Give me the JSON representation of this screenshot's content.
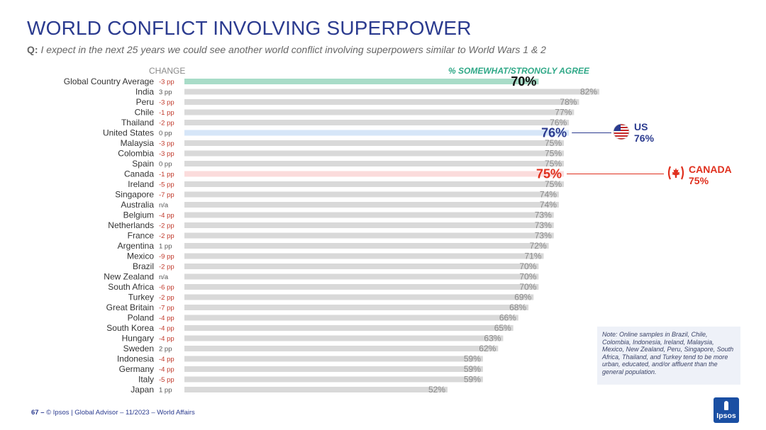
{
  "title": "WORLD CONFLICT INVOLVING SUPERPOWER",
  "question": {
    "label": "Q:",
    "text": "I expect in the next 25 years we could see another world conflict involving superpowers similar to World Wars 1 & 2"
  },
  "change_header": "CHANGE",
  "agree_header": "% SOMEWHAT/STRONGLY AGREE",
  "colors": {
    "title": "#2b3b8f",
    "bar_default": "#d9d9d9",
    "bar_global": "#a8dcc8",
    "bar_us": "#d6e6f8",
    "bar_canada": "#fbdcdc",
    "negative_change": "#c0392b",
    "positive_change": "#555555",
    "us_accent": "#2b3b8f",
    "canada_accent": "#e0301e",
    "agree_header": "#2fa887"
  },
  "chart_data": {
    "type": "bar",
    "orientation": "horizontal",
    "categories": [
      "Global Country Average",
      "India",
      "Peru",
      "Chile",
      "Thailand",
      "United States",
      "Malaysia",
      "Colombia",
      "Spain",
      "Canada",
      "Ireland",
      "Singapore",
      "Australia",
      "Belgium",
      "Netherlands",
      "France",
      "Argentina",
      "Mexico",
      "Brazil",
      "New Zealand",
      "South Africa",
      "Turkey",
      "Great Britain",
      "Poland",
      "South Korea",
      "Hungary",
      "Sweden",
      "Indonesia",
      "Germany",
      "Italy",
      "Japan"
    ],
    "values": [
      70,
      82,
      78,
      77,
      76,
      76,
      75,
      75,
      75,
      75,
      75,
      74,
      74,
      73,
      73,
      73,
      72,
      71,
      70,
      70,
      70,
      69,
      68,
      66,
      65,
      63,
      62,
      59,
      59,
      59,
      52
    ],
    "value_labels": [
      "70%",
      "82%",
      "78%",
      "77%",
      "76%",
      "76%",
      "75%",
      "75%",
      "75%",
      "75%",
      "75%",
      "74%",
      "74%",
      "73%",
      "73%",
      "73%",
      "72%",
      "71%",
      "70%",
      "70%",
      "70%",
      "69%",
      "68%",
      "66%",
      "65%",
      "63%",
      "62%",
      "59%",
      "59%",
      "59%",
      "52%"
    ],
    "change": [
      "-3 pp",
      "3 pp",
      "-3 pp",
      "-1 pp",
      "-2 pp",
      "0 pp",
      "-3 pp",
      "-3 pp",
      "0 pp",
      "-1 pp",
      "-5 pp",
      "-7 pp",
      "n/a",
      "-4 pp",
      "-2 pp",
      "-2 pp",
      "1 pp",
      "-9 pp",
      "-2 pp",
      "n/a",
      "-6 pp",
      "-2 pp",
      "-7 pp",
      "-4 pp",
      "-4 pp",
      "-4 pp",
      "2 pp",
      "-4 pp",
      "-4 pp",
      "-5 pp",
      "1 pp"
    ],
    "highlight": {
      "Global Country Average": "global",
      "United States": "us",
      "Canada": "canada"
    },
    "xlim": [
      0,
      100
    ],
    "title": "WORLD CONFLICT INVOLVING SUPERPOWER",
    "xlabel": "% SOMEWHAT/STRONGLY AGREE",
    "ylabel": ""
  },
  "callouts": {
    "us": {
      "label": "US",
      "value": "76%",
      "flag": "us-flag-icon"
    },
    "canada": {
      "label": "CANADA",
      "value": "75%",
      "flag": "canada-flag-icon"
    }
  },
  "note": "Note: Online samples in Brazil, Chile, Colombia, Indonesia, Ireland, Malaysia, Mexico, New Zealand, Peru, Singapore, South Africa, Thailand, and Turkey tend to be more urban, educated, and/or affluent than the general population.",
  "footer": {
    "page_number": "67 –",
    "text": "© Ipsos | Global Advisor – 11/2023 – World Affairs"
  },
  "logo_text": "Ipsos"
}
